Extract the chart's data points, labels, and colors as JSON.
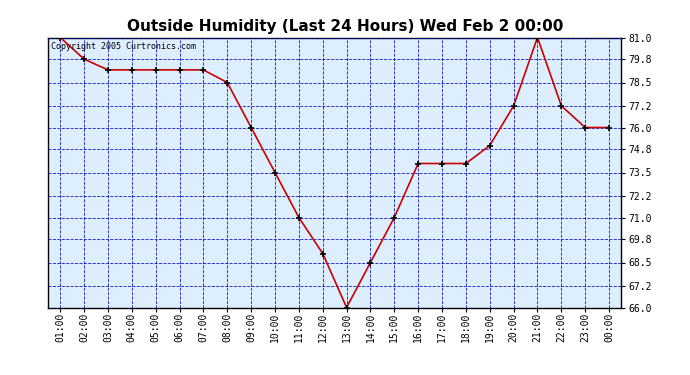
{
  "title": "Outside Humidity (Last 24 Hours) Wed Feb 2 00:00",
  "copyright_text": "Copyright 2005 Curtronics.com",
  "x_labels": [
    "01:00",
    "02:00",
    "03:00",
    "04:00",
    "05:00",
    "06:00",
    "07:00",
    "08:00",
    "09:00",
    "10:00",
    "11:00",
    "12:00",
    "13:00",
    "14:00",
    "15:00",
    "16:00",
    "17:00",
    "18:00",
    "19:00",
    "20:00",
    "21:00",
    "22:00",
    "23:00",
    "00:00"
  ],
  "y_values": [
    81.0,
    79.8,
    79.2,
    79.2,
    79.2,
    79.2,
    79.2,
    78.5,
    76.0,
    73.5,
    71.0,
    69.0,
    66.0,
    68.5,
    71.0,
    74.0,
    74.0,
    74.0,
    75.0,
    77.2,
    81.0,
    77.2,
    76.0,
    76.0
  ],
  "line_color": "#cc0000",
  "marker_color": "#000000",
  "bg_color": "#ffffff",
  "plot_bg_color": "#ddeeff",
  "grid_color": "#0000bb",
  "axis_color": "#000000",
  "title_color": "#000000",
  "ylim": [
    66.0,
    81.0
  ],
  "yticks": [
    66.0,
    67.2,
    68.5,
    69.8,
    71.0,
    72.2,
    73.5,
    74.8,
    76.0,
    77.2,
    78.5,
    79.8,
    81.0
  ],
  "title_fontsize": 11,
  "tick_fontsize": 7,
  "copyright_fontsize": 6
}
